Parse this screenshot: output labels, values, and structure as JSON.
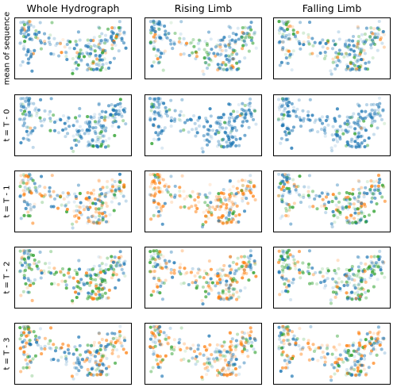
{
  "chart_data": {
    "type": "scatter",
    "columns": [
      "Whole Hydrograph",
      "Rising Limb",
      "Falling Limb"
    ],
    "rows": [
      "mean of sequence",
      "t = T - 0",
      "t = T - 1",
      "t = T - 2",
      "t = T - 3"
    ],
    "colors": {
      "blue": "#1f77b4",
      "orange": "#ff7f0e",
      "green": "#2ca02c"
    },
    "panel_mix": [
      [
        {
          "blue": 0.72,
          "orange": 0.1,
          "green": 0.18
        },
        {
          "blue": 0.62,
          "orange": 0.12,
          "green": 0.26
        },
        {
          "blue": 0.64,
          "orange": 0.12,
          "green": 0.24
        }
      ],
      [
        {
          "blue": 0.85,
          "orange": 0.01,
          "green": 0.14
        },
        {
          "blue": 0.9,
          "orange": 0.01,
          "green": 0.09
        },
        {
          "blue": 0.9,
          "orange": 0.01,
          "green": 0.09
        }
      ],
      [
        {
          "blue": 0.4,
          "orange": 0.42,
          "green": 0.18
        },
        {
          "blue": 0.28,
          "orange": 0.6,
          "green": 0.12
        },
        {
          "blue": 0.46,
          "orange": 0.22,
          "green": 0.32
        }
      ],
      [
        {
          "blue": 0.38,
          "orange": 0.24,
          "green": 0.38
        },
        {
          "blue": 0.34,
          "orange": 0.42,
          "green": 0.24
        },
        {
          "blue": 0.4,
          "orange": 0.16,
          "green": 0.44
        }
      ],
      [
        {
          "blue": 0.42,
          "orange": 0.4,
          "green": 0.18
        },
        {
          "blue": 0.4,
          "orange": 0.44,
          "green": 0.16
        },
        {
          "blue": 0.42,
          "orange": 0.4,
          "green": 0.18
        }
      ]
    ]
  }
}
